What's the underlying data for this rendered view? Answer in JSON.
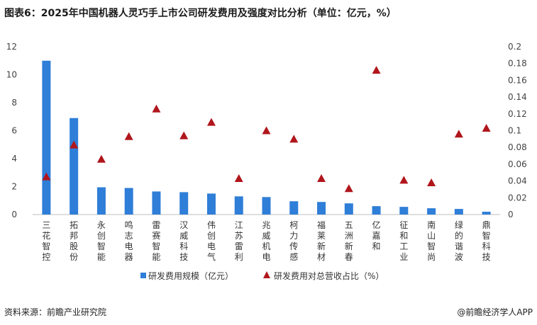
{
  "title": "图表6：2025年中国机器人灵巧手上市公司研发费用及强度对比分析（单位：亿元，%）",
  "source": "资料来源：前瞻产业研究院",
  "brand": "@前瞻经济学人APP",
  "chart_data": {
    "type": "bar",
    "categories": [
      "三花智控",
      "拓邦股份",
      "永创智能",
      "鸣志电器",
      "雷赛智能",
      "汉威科技",
      "伟创电气",
      "江苏雷利",
      "兆威机电",
      "柯力传感",
      "福莱新材",
      "五洲新春",
      "亿嘉和",
      "征和工业",
      "南山智尚",
      "绿的谐波",
      "鼎智科技"
    ],
    "series": [
      {
        "name": "研发费用规模（亿元）",
        "type": "bar",
        "axis": "left",
        "color": "#2f7ed8",
        "values": [
          11.0,
          6.9,
          1.95,
          1.9,
          1.65,
          1.6,
          1.5,
          1.3,
          1.25,
          0.95,
          0.9,
          0.8,
          0.6,
          0.55,
          0.45,
          0.4,
          0.2
        ]
      },
      {
        "name": "研发费用对总营收占比（%）",
        "type": "scatter",
        "marker": "triangle",
        "axis": "right",
        "color": "#b0161c",
        "values": [
          0.045,
          0.083,
          0.066,
          0.093,
          0.126,
          0.094,
          0.11,
          0.043,
          0.1,
          0.09,
          0.043,
          0.031,
          0.172,
          0.041,
          0.038,
          0.096,
          0.103
        ]
      }
    ],
    "y_left": {
      "ticks": [
        "0",
        "2",
        "4",
        "6",
        "8",
        "10",
        "12"
      ],
      "min": 0,
      "max": 12
    },
    "y_right": {
      "ticks": [
        "0",
        "0.02",
        "0.04",
        "0.06",
        "0.08",
        "0.1",
        "0.12",
        "0.14",
        "0.16",
        "0.18",
        "0.2"
      ],
      "min": 0,
      "max": 0.2
    },
    "legend": "bottom",
    "grid": false
  }
}
